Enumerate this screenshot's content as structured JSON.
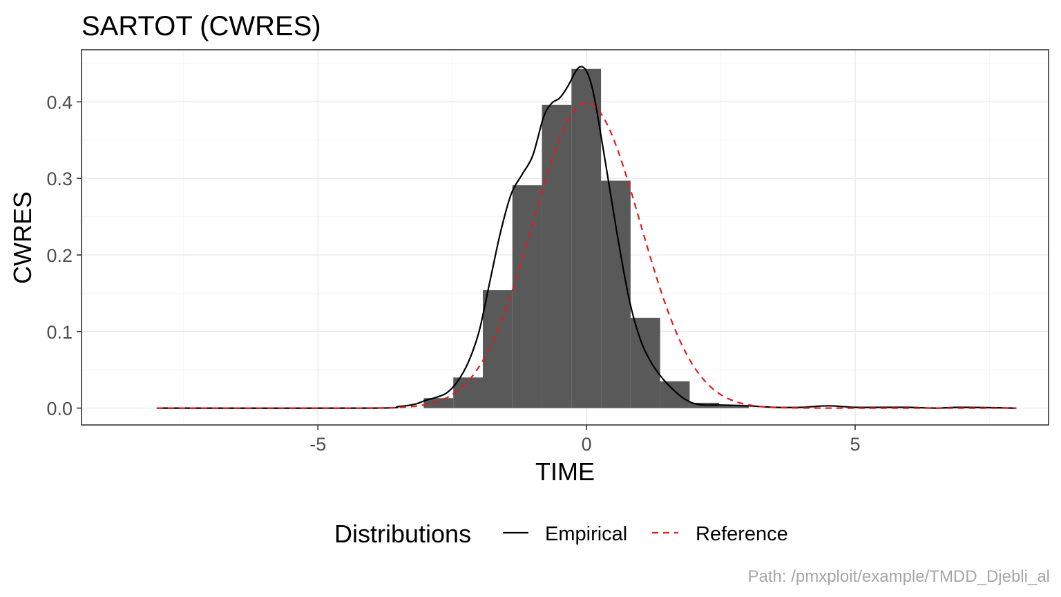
{
  "chart_data": {
    "type": "histogram",
    "title": "SARTOT (CWRES)",
    "xlabel": "TIME",
    "ylabel": "CWRES",
    "xlim": [
      -9.4,
      8.6
    ],
    "ylim": [
      -0.022,
      0.468
    ],
    "x_ticks": [
      -5,
      0,
      5
    ],
    "x_tick_labels": [
      "-5",
      "0",
      "5"
    ],
    "y_ticks": [
      0.0,
      0.1,
      0.2,
      0.3,
      0.4
    ],
    "y_tick_labels": [
      "0.0",
      "0.1",
      "0.2",
      "0.3",
      "0.4"
    ],
    "grid": true,
    "bin_width": 0.55,
    "bins": [
      {
        "x0": -3.03,
        "x1": -2.48,
        "density": 0.013
      },
      {
        "x0": -2.48,
        "x1": -1.93,
        "density": 0.04
      },
      {
        "x0": -1.93,
        "x1": -1.38,
        "density": 0.154
      },
      {
        "x0": -1.38,
        "x1": -0.83,
        "density": 0.291
      },
      {
        "x0": -0.83,
        "x1": -0.28,
        "density": 0.396
      },
      {
        "x0": -0.28,
        "x1": 0.27,
        "density": 0.443
      },
      {
        "x0": 0.27,
        "x1": 0.82,
        "density": 0.297
      },
      {
        "x0": 0.82,
        "x1": 1.37,
        "density": 0.118
      },
      {
        "x0": 1.37,
        "x1": 1.92,
        "density": 0.035
      },
      {
        "x0": 1.92,
        "x1": 2.47,
        "density": 0.007
      },
      {
        "x0": 2.47,
        "x1": 3.02,
        "density": 0.003
      }
    ],
    "series": [
      {
        "name": "Empirical",
        "style": "solid",
        "color": "#000000",
        "x": [
          -8.0,
          -4.0,
          -3.5,
          -3.2,
          -3.0,
          -2.8,
          -2.6,
          -2.4,
          -2.2,
          -2.0,
          -1.8,
          -1.6,
          -1.4,
          -1.2,
          -1.0,
          -0.8,
          -0.65,
          -0.5,
          -0.35,
          -0.2,
          -0.1,
          0.0,
          0.1,
          0.2,
          0.4,
          0.6,
          0.8,
          1.0,
          1.2,
          1.4,
          1.6,
          1.8,
          2.0,
          2.2,
          2.5,
          3.0,
          3.5,
          4.0,
          4.5,
          5.0,
          5.5,
          6.0,
          6.5,
          7.0,
          8.0
        ],
        "y": [
          0.0,
          0.0,
          0.002,
          0.005,
          0.01,
          0.014,
          0.02,
          0.035,
          0.06,
          0.1,
          0.165,
          0.23,
          0.28,
          0.305,
          0.33,
          0.38,
          0.398,
          0.405,
          0.42,
          0.44,
          0.446,
          0.44,
          0.42,
          0.385,
          0.3,
          0.215,
          0.14,
          0.09,
          0.06,
          0.04,
          0.025,
          0.013,
          0.006,
          0.004,
          0.004,
          0.003,
          0.001,
          0.001,
          0.003,
          0.001,
          0.001,
          0.001,
          0.0,
          0.001,
          0.0
        ]
      },
      {
        "name": "Reference",
        "style": "dashed",
        "color": "#e41a1c",
        "distribution": "standard normal density",
        "x_range": [
          -8,
          8
        ]
      }
    ],
    "legend": {
      "title": "Distributions",
      "position": "bottom",
      "items": [
        "Empirical",
        "Reference"
      ]
    },
    "colors": {
      "bars": "#595959",
      "panel_border": "#333333",
      "grid_major": "#ebebeb",
      "grid_minor": "#f5f5f5"
    }
  },
  "caption": "Path: /pmxploit/example/TMDD_Djebli_al"
}
